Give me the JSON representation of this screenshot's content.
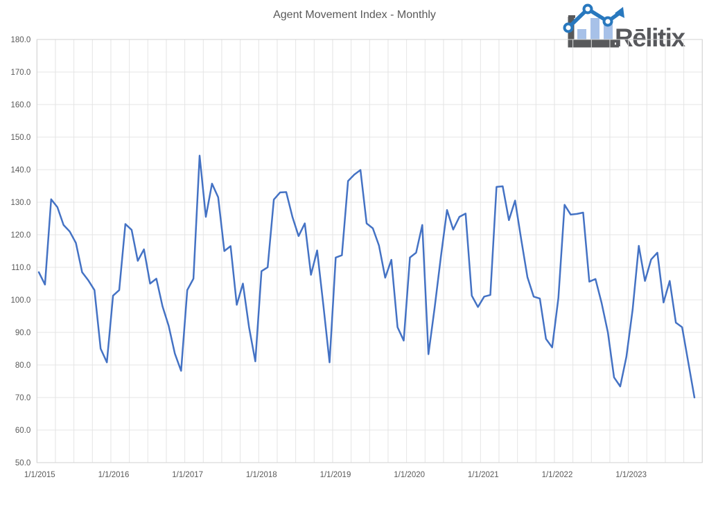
{
  "title": "Agent Movement Index - Monthly",
  "logo": {
    "text": "Rēlitix",
    "text_color": "#57585c",
    "bar_fill": "#a7c1e8",
    "line_color": "#2878be",
    "axis_color": "#58595b"
  },
  "colors": {
    "series_line": "#4472c4",
    "gridline": "#e4e4e4",
    "plot_border": "#d2d2d2",
    "axis_label": "#595959",
    "title": "#595959",
    "background": "#ffffff"
  },
  "chart_data": {
    "type": "line",
    "title": "Agent Movement Index - Monthly",
    "x_frequency": "monthly",
    "x_start_label": "1/1/2015",
    "x_end_label": "11/1/2023",
    "x_tick_labels": [
      "1/1/2015",
      "1/1/2016",
      "1/1/2017",
      "1/1/2018",
      "1/1/2019",
      "1/1/2020",
      "1/1/2021",
      "1/1/2022",
      "1/1/2023"
    ],
    "y_tick_labels": [
      "50.0",
      "60.0",
      "70.0",
      "80.0",
      "90.0",
      "100.0",
      "110.0",
      "120.0",
      "130.0",
      "140.0",
      "150.0",
      "160.0",
      "170.0",
      "180.0"
    ],
    "ylim": [
      50,
      180
    ],
    "grid": {
      "horizontal_step": 10,
      "vertical_step_months": 3,
      "visible": true
    },
    "legend": "none",
    "series": [
      {
        "name": "Agent Movement Index",
        "color": "#4472c4",
        "values": [
          108.5,
          104.7,
          130.9,
          128.5,
          123.0,
          121.0,
          117.5,
          108.5,
          106.0,
          103.0,
          85.0,
          80.8,
          101.3,
          103.0,
          123.3,
          121.5,
          112.0,
          115.5,
          105.0,
          106.5,
          98.0,
          92.0,
          83.5,
          78.2,
          103.0,
          106.5,
          144.3,
          125.5,
          135.7,
          131.5,
          115.0,
          116.5,
          98.5,
          105.0,
          91.5,
          81.1,
          108.8,
          110.0,
          130.8,
          133.0,
          133.1,
          125.5,
          119.6,
          123.5,
          107.7,
          115.2,
          98.5,
          80.8,
          113.0,
          113.7,
          136.5,
          138.5,
          139.9,
          123.5,
          122.0,
          116.7,
          106.8,
          112.3,
          91.6,
          87.5,
          113.0,
          114.5,
          123.0,
          83.3,
          97.7,
          113.2,
          127.6,
          121.6,
          125.5,
          126.5,
          101.3,
          97.8,
          101.0,
          101.5,
          134.7,
          134.9,
          124.5,
          130.5,
          118.5,
          107.0,
          101.0,
          100.4,
          88.0,
          85.4,
          100.6,
          129.2,
          126.2,
          126.4,
          126.8,
          105.6,
          106.4,
          99.0,
          90.0,
          76.2,
          73.4,
          82.5,
          97.0,
          116.6,
          105.8,
          112.4,
          114.5,
          99.2,
          105.8,
          93.0,
          91.6,
          80.8,
          70.0
        ]
      }
    ]
  }
}
